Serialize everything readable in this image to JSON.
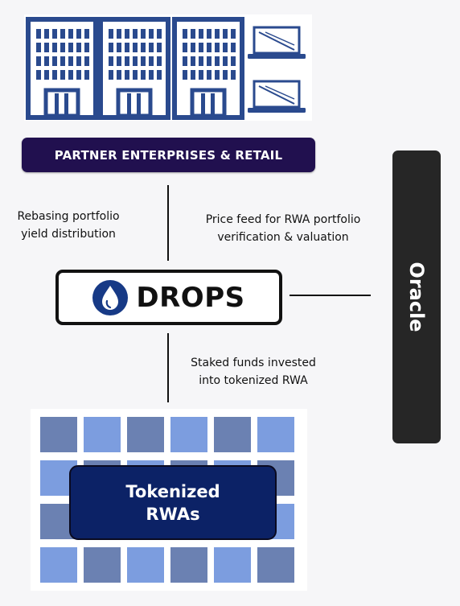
{
  "partner": {
    "label": "PARTNER ENTERPRISES & RETAIL"
  },
  "left_label": {
    "line1": "Rebasing portfolio",
    "line2": "yield distribution"
  },
  "right_label": {
    "line1": "Price feed for RWA portfolio",
    "line2": "verification & valuation"
  },
  "drops": {
    "label": "DROPS",
    "icon": "water-drop-icon"
  },
  "oracle": {
    "label": "Oracle"
  },
  "bottom_label": {
    "line1": "Staked funds invested",
    "line2": "into tokenized RWA"
  },
  "rwa": {
    "line1": "Tokenized",
    "line2": "RWAs"
  },
  "colors": {
    "building": "#2a4a8e",
    "partner_bg": "#21104f",
    "oracle_bg": "#262626",
    "rwa_bg": "#0c2266",
    "tile_dark": "#6b81b2",
    "tile_light": "#7c9ddf"
  }
}
